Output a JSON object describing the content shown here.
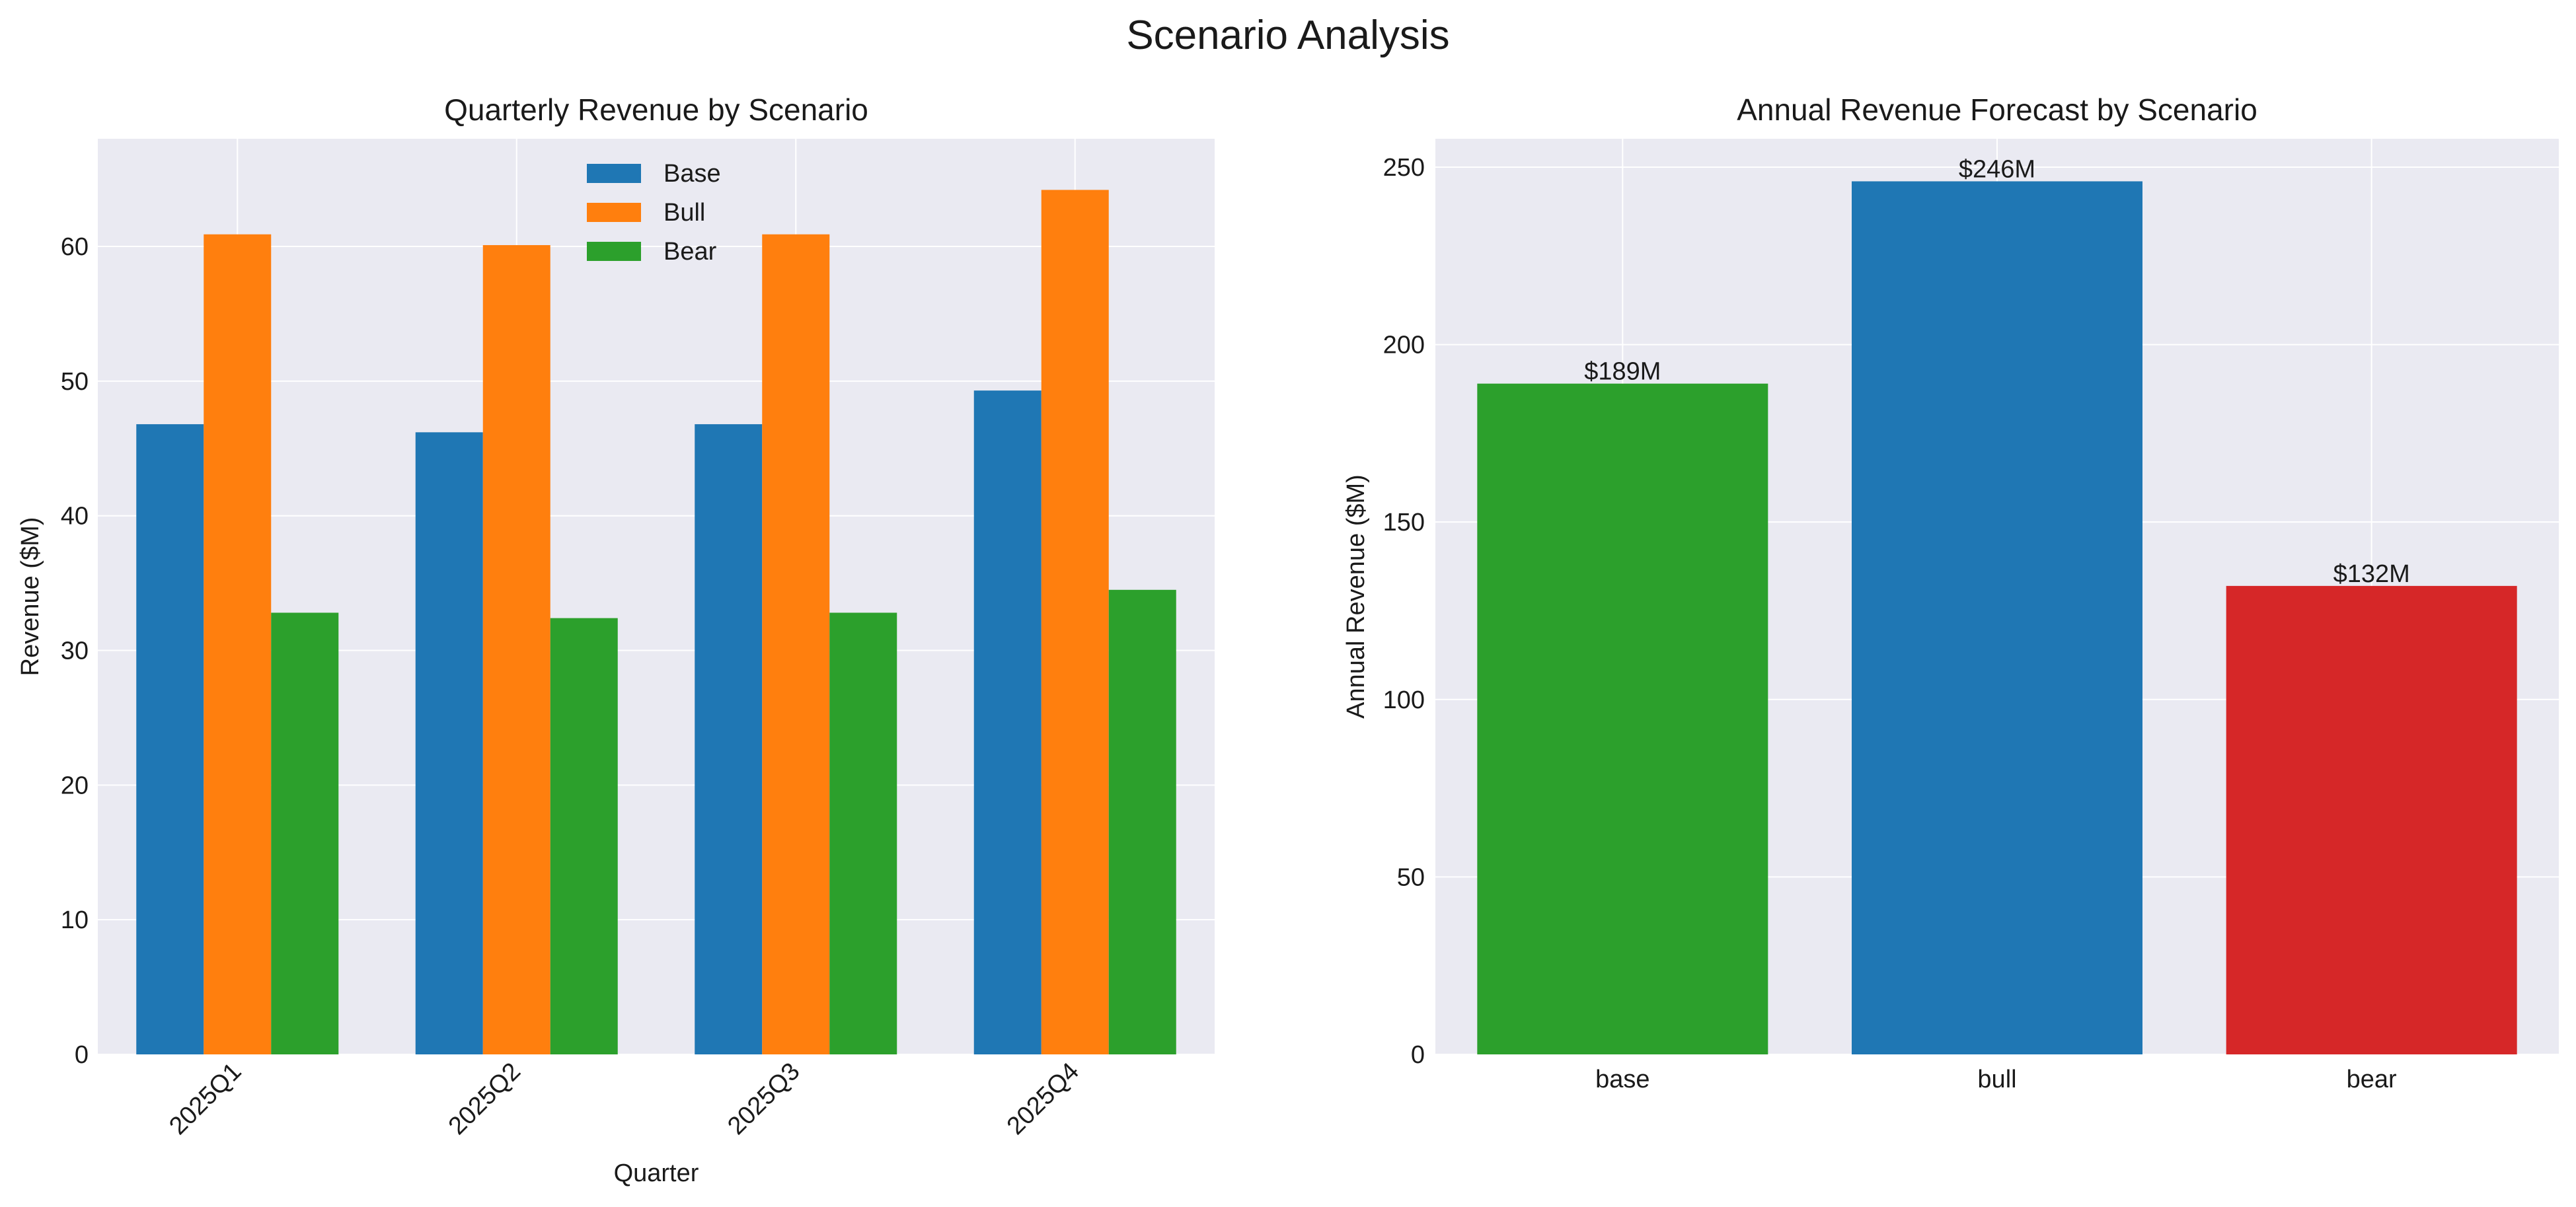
{
  "suptitle": "Scenario Analysis",
  "chart_data": [
    {
      "type": "bar",
      "title": "Quarterly Revenue by Scenario",
      "xlabel": "Quarter",
      "ylabel": "Revenue ($M)",
      "categories": [
        "2025Q1",
        "2025Q2",
        "2025Q3",
        "2025Q4"
      ],
      "ylim": [
        0,
        68
      ],
      "yticks": [
        0,
        10,
        20,
        30,
        40,
        50,
        60
      ],
      "grid": true,
      "legend": "top-center",
      "series": [
        {
          "name": "Base",
          "color": "#1f77b4",
          "values": [
            46.8,
            46.2,
            46.8,
            49.3
          ]
        },
        {
          "name": "Bull",
          "color": "#ff7f0e",
          "values": [
            60.9,
            60.1,
            60.9,
            64.2
          ]
        },
        {
          "name": "Bear",
          "color": "#2ca02c",
          "values": [
            32.8,
            32.4,
            32.8,
            34.5
          ]
        }
      ]
    },
    {
      "type": "bar",
      "title": "Annual Revenue Forecast by Scenario",
      "xlabel": "",
      "ylabel": "Annual Revenue ($M)",
      "categories": [
        "base",
        "bull",
        "bear"
      ],
      "values": [
        189,
        246,
        132
      ],
      "data_labels": [
        "$189M",
        "$246M",
        "$132M"
      ],
      "colors": [
        "#2ca02c",
        "#1f77b4",
        "#d62728"
      ],
      "ylim": [
        0,
        258
      ],
      "yticks": [
        0,
        50,
        100,
        150,
        200,
        250
      ],
      "grid": true
    }
  ]
}
